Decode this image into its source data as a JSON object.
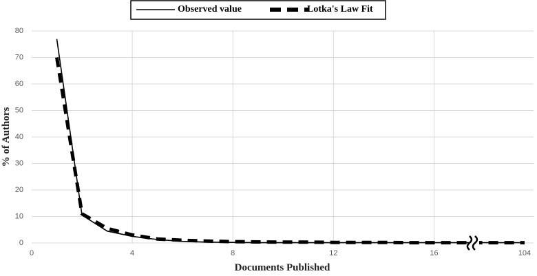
{
  "chart_data": {
    "type": "line",
    "x_label": "Documents Published",
    "y_label": "% of Authors",
    "x": [
      1,
      2,
      3,
      4,
      5,
      6,
      7,
      8,
      9,
      10,
      11,
      12,
      13,
      14,
      15,
      16,
      17,
      102,
      103,
      104
    ],
    "series": [
      {
        "name": "Observed value",
        "color": "#000000",
        "style": "solid",
        "values": [
          77,
          10.5,
          4.5,
          2.5,
          1.3,
          0.6,
          0.3,
          0.2,
          0.1,
          0.1,
          0.1,
          0.1,
          0.1,
          0.1,
          0.1,
          0.1,
          0.1,
          0.1,
          0.1,
          0.1
        ]
      },
      {
        "name": "Lotka's Law Fit",
        "color": "#000000",
        "style": "dashed",
        "values": [
          70,
          11,
          5.5,
          3,
          1.5,
          1,
          0.7,
          0.5,
          0.4,
          0.3,
          0.3,
          0.2,
          0.2,
          0.2,
          0.1,
          0.1,
          0.1,
          0.1,
          0.1,
          0.1
        ]
      }
    ],
    "xlim": [
      0,
      104
    ],
    "xbreak": [
      17.6,
      102
    ],
    "xticks": [
      0,
      4,
      8,
      12,
      16,
      104
    ],
    "ylim": [
      0,
      80
    ],
    "yticks": [
      0,
      10,
      20,
      30,
      40,
      50,
      60,
      70,
      80
    ],
    "grid": true,
    "legend": "top"
  }
}
